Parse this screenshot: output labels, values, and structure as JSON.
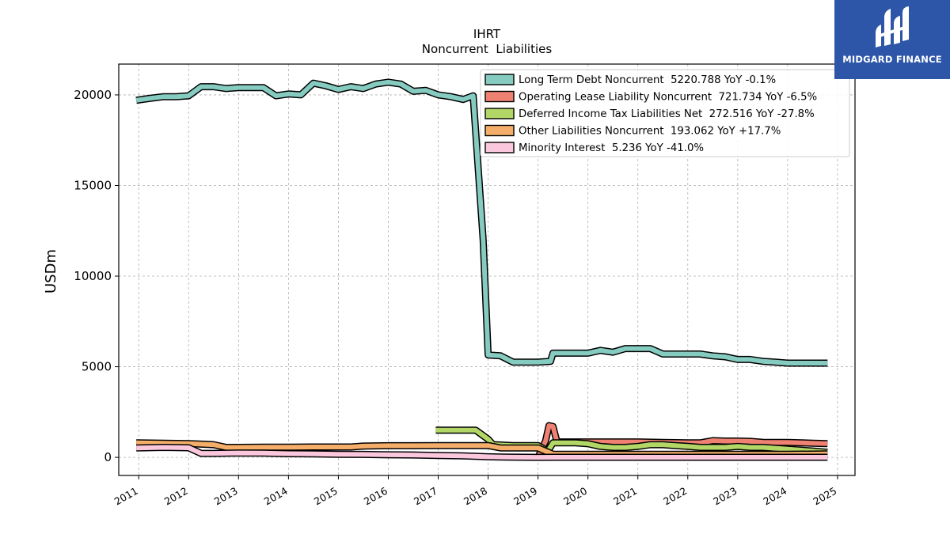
{
  "brand": {
    "name": "MIDGARD FINANCE",
    "color": "#2d56a8"
  },
  "chart_data": {
    "type": "line",
    "title": "IHRT",
    "subtitle": "Noncurrent  Liabilities",
    "xlabel": "",
    "ylabel": "USDm",
    "xlim": [
      2010.6,
      2025.35
    ],
    "ylim": [
      -1000,
      21700
    ],
    "yticks": [
      0,
      5000,
      10000,
      15000,
      20000
    ],
    "xticks": [
      2011,
      2012,
      2013,
      2014,
      2015,
      2016,
      2017,
      2018,
      2019,
      2020,
      2021,
      2022,
      2023,
      2024,
      2025
    ],
    "grid": true,
    "legend_position": "top-right",
    "series": [
      {
        "name": "Long Term Debt Noncurrent  5220.788 YoY -0.1%",
        "color": "#86cbc0",
        "x": [
          2010.95,
          2011.2,
          2011.5,
          2011.75,
          2012.0,
          2012.25,
          2012.5,
          2012.75,
          2013.0,
          2013.25,
          2013.5,
          2013.75,
          2014.0,
          2014.25,
          2014.5,
          2014.75,
          2015.0,
          2015.25,
          2015.5,
          2015.75,
          2016.0,
          2016.25,
          2016.5,
          2016.75,
          2017.0,
          2017.25,
          2017.5,
          2017.7,
          2017.9,
          2018.0,
          2018.25,
          2018.5,
          2018.75,
          2019.0,
          2019.25,
          2019.3,
          2019.5,
          2019.75,
          2020.0,
          2020.25,
          2020.5,
          2020.75,
          2021.0,
          2021.25,
          2021.5,
          2021.75,
          2022.0,
          2022.25,
          2022.5,
          2022.75,
          2023.0,
          2023.25,
          2023.5,
          2023.75,
          2024.0,
          2024.25,
          2024.5,
          2024.8
        ],
        "y": [
          19700,
          19800,
          19900,
          19900,
          19950,
          20450,
          20450,
          20350,
          20400,
          20400,
          20400,
          19950,
          20050,
          20000,
          20650,
          20500,
          20300,
          20450,
          20350,
          20600,
          20700,
          20600,
          20200,
          20250,
          20000,
          19900,
          19750,
          19950,
          12000,
          5650,
          5600,
          5250,
          5250,
          5250,
          5300,
          5750,
          5750,
          5750,
          5750,
          5900,
          5800,
          6000,
          6000,
          6000,
          5700,
          5700,
          5700,
          5700,
          5600,
          5550,
          5400,
          5400,
          5300,
          5250,
          5200,
          5200,
          5200,
          5200
        ]
      },
      {
        "name": "Operating Lease Liability Noncurrent  721.734 YoY -6.5%",
        "color": "#ee8172",
        "x": [
          2019.0,
          2019.15,
          2019.22,
          2019.3,
          2019.38,
          2019.5,
          2020.0,
          2020.5,
          2021.0,
          2021.5,
          2022.0,
          2022.25,
          2022.5,
          2022.75,
          2023.0,
          2023.25,
          2023.5,
          2024.0,
          2024.5,
          2024.8
        ],
        "y": [
          0,
          900,
          1750,
          1700,
          850,
          850,
          850,
          850,
          850,
          820,
          800,
          800,
          920,
          900,
          900,
          880,
          830,
          820,
          780,
          760
        ]
      },
      {
        "name": "Deferred Income Tax Liabilities Net  272.516 YoY -27.8%",
        "color": "#b3d767",
        "x": [
          2016.95,
          2017.75,
          2018.0,
          2018.1,
          2018.5,
          2019.0,
          2019.2,
          2019.3,
          2019.5,
          2019.75,
          2020.0,
          2020.25,
          2020.5,
          2020.75,
          2021.0,
          2021.25,
          2021.5,
          2021.75,
          2022.0,
          2022.25,
          2022.5,
          2022.75,
          2023.0,
          2023.25,
          2023.5,
          2023.75,
          2024.0,
          2024.5,
          2024.8
        ],
        "y": [
          1500,
          1500,
          1000,
          700,
          650,
          650,
          350,
          800,
          800,
          800,
          750,
          600,
          550,
          550,
          600,
          700,
          700,
          650,
          600,
          550,
          550,
          550,
          600,
          550,
          550,
          500,
          450,
          350,
          280
        ]
      },
      {
        "name": "Other Liabilities Noncurrent  193.062 YoY +17.7%",
        "color": "#f4ae6a",
        "x": [
          2010.95,
          2011.5,
          2012.0,
          2012.25,
          2012.5,
          2012.75,
          2013.0,
          2013.5,
          2014.0,
          2014.5,
          2015.0,
          2015.25,
          2015.5,
          2016.0,
          2016.5,
          2017.0,
          2017.5,
          2018.0,
          2018.25,
          2018.5,
          2019.0,
          2019.3,
          2019.5,
          2020.0,
          2020.5,
          2021.0,
          2021.5,
          2022.0,
          2022.5,
          2023.0,
          2023.5,
          2024.0,
          2024.5,
          2024.8
        ],
        "y": [
          800,
          780,
          760,
          730,
          700,
          550,
          550,
          560,
          560,
          570,
          570,
          570,
          620,
          640,
          640,
          650,
          650,
          650,
          520,
          520,
          520,
          170,
          170,
          170,
          170,
          170,
          170,
          170,
          170,
          170,
          170,
          170,
          180,
          190
        ]
      },
      {
        "name": "Minority Interest  5.236 YoY -41.0%",
        "color": "#fbc7dd",
        "x": [
          2010.95,
          2011.5,
          2012.0,
          2012.25,
          2012.5,
          2013.0,
          2013.5,
          2014.0,
          2014.5,
          2015.0,
          2015.5,
          2016.0,
          2016.5,
          2017.0,
          2017.5,
          2018.0,
          2018.5,
          2019.0,
          2019.3,
          2019.5,
          2020.0,
          2021.0,
          2022.0,
          2023.0,
          2024.0,
          2024.8
        ],
        "y": [
          520,
          550,
          530,
          220,
          220,
          240,
          230,
          200,
          190,
          170,
          160,
          140,
          130,
          100,
          80,
          30,
          10,
          0,
          5,
          5,
          5,
          5,
          5,
          5,
          5,
          5
        ]
      }
    ]
  }
}
